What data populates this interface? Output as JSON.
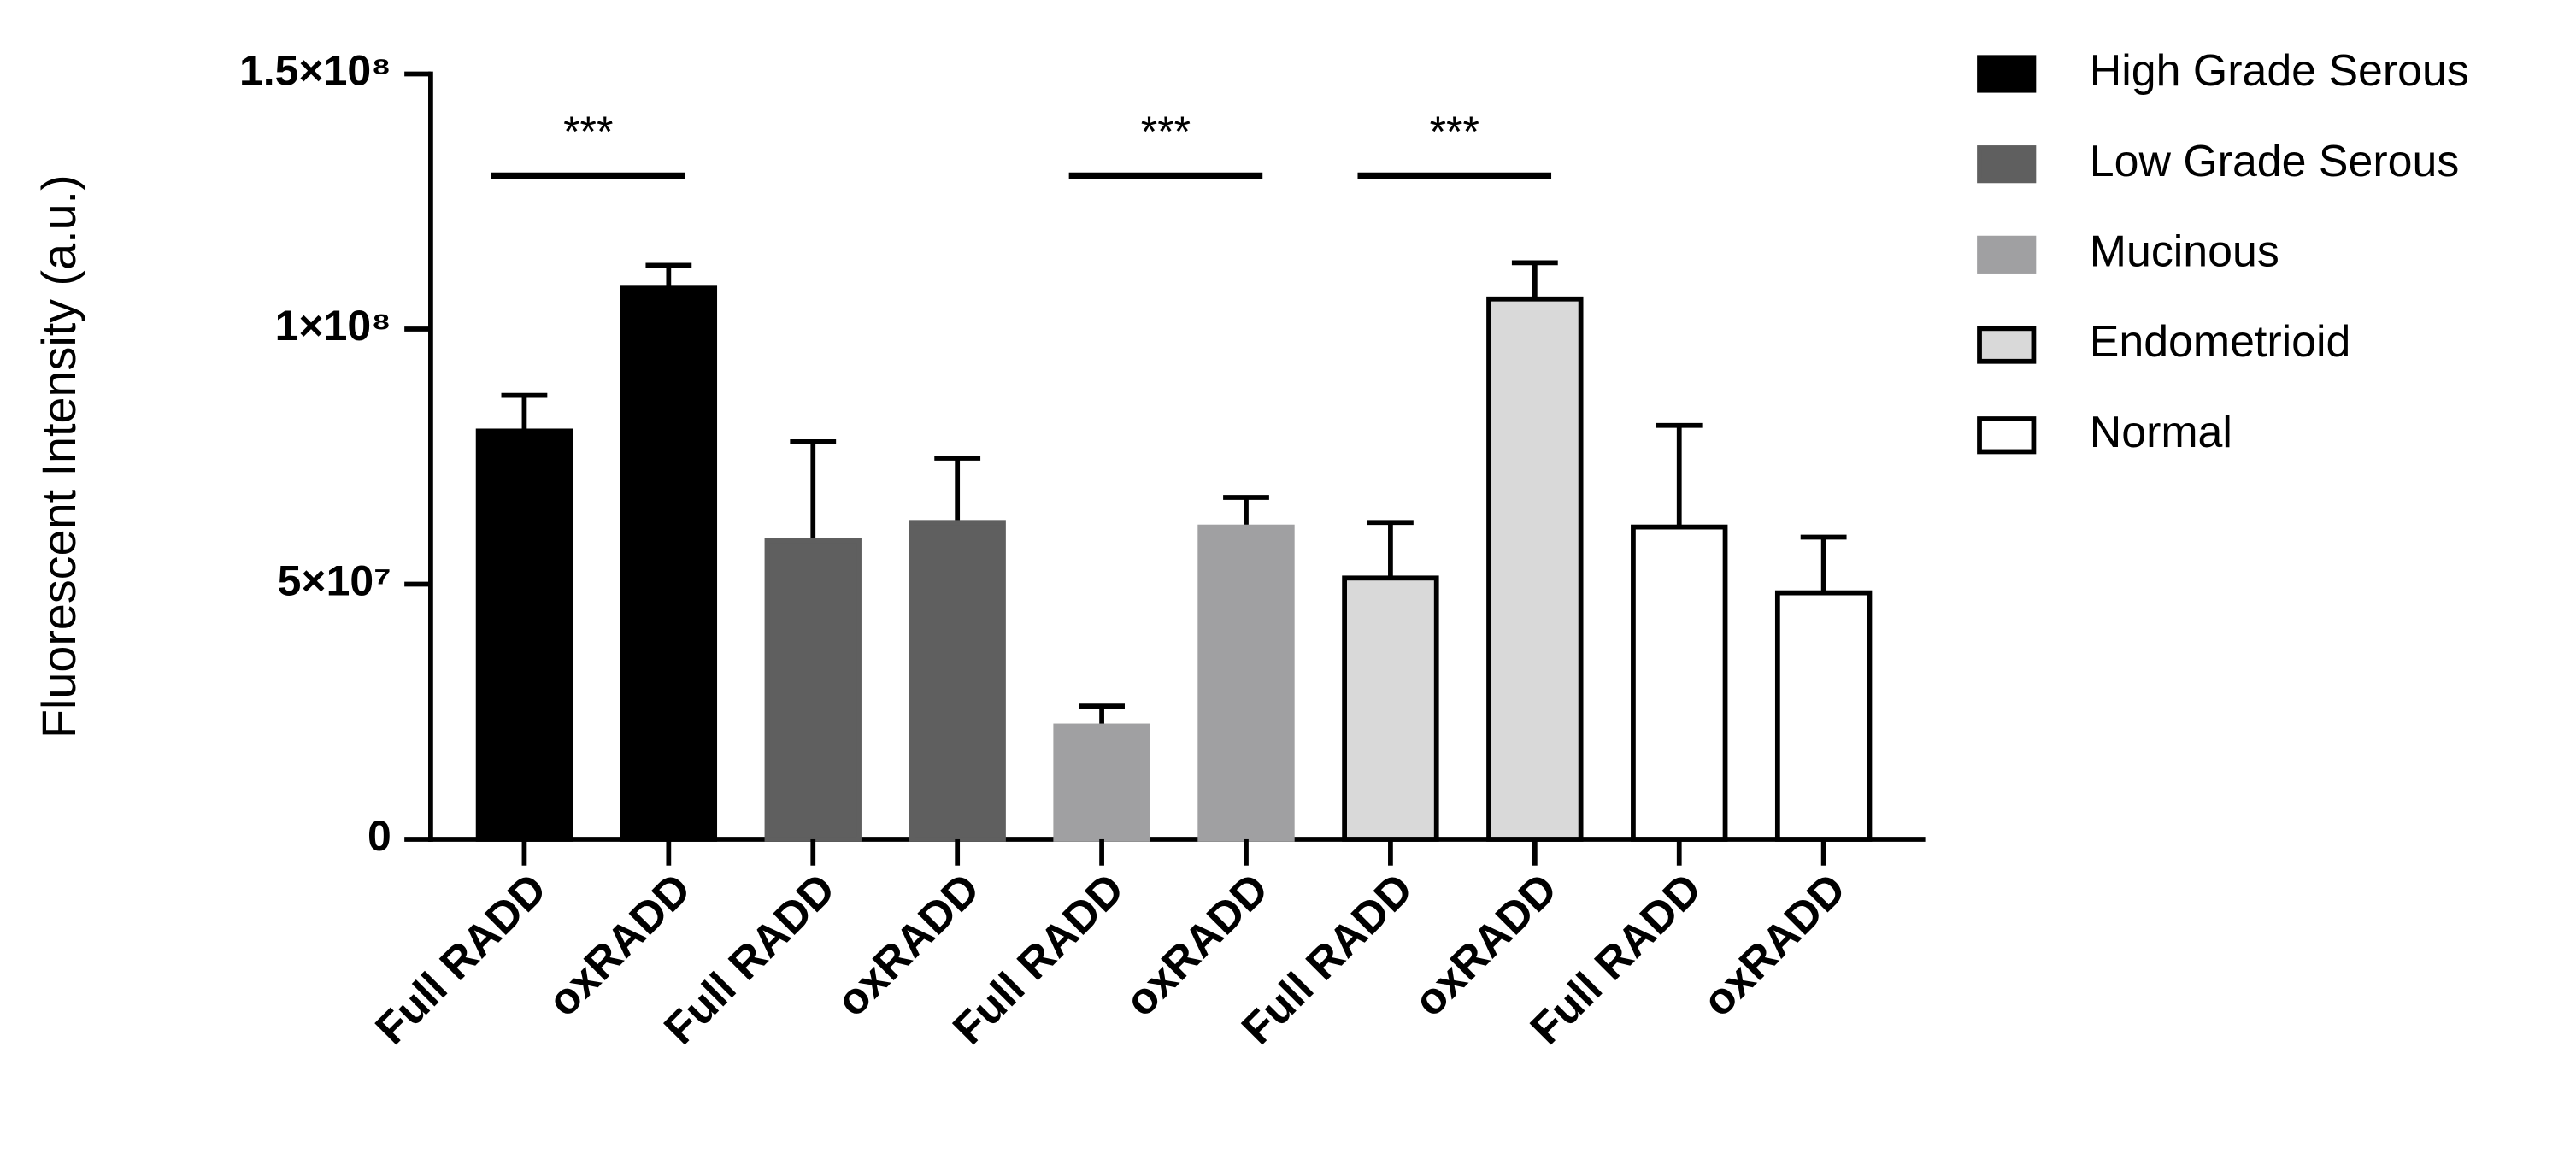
{
  "chart_data": {
    "type": "bar",
    "y_label": "Fluorescent Intensity (a.u.)",
    "categories": [
      "Full RADD",
      "oxRADD"
    ],
    "series": [
      {
        "name": "High Grade Serous",
        "color": "#000000",
        "values": [
          80000000,
          108000000
        ],
        "errors": [
          7000000,
          4500000
        ]
      },
      {
        "name": "Low Grade Serous",
        "color": "#5f5f5f",
        "values": [
          58600000,
          62100000
        ],
        "errors": [
          19300000,
          12600000
        ]
      },
      {
        "name": "Mucinous",
        "color": "#a0a0a2",
        "values": [
          22200000,
          61200000
        ],
        "errors": [
          3900000,
          5800000
        ]
      },
      {
        "name": "Endometrioid",
        "color": "#d9d9d9",
        "values": [
          51200000,
          105900000
        ],
        "errors": [
          10900000,
          7100000
        ]
      },
      {
        "name": "Normal",
        "color": "#ffffff",
        "values": [
          61200000,
          48300000
        ],
        "errors": [
          19900000,
          10900000
        ]
      }
    ],
    "ylim": [
      0,
      150000000
    ],
    "yticks": [
      0,
      {
        "value": 50000000,
        "label": "5×10⁷"
      },
      {
        "value": 100000000,
        "label": "1×10⁸"
      },
      {
        "value": 150000000,
        "label": "1.5×10⁸"
      }
    ],
    "annotations": [
      {
        "text": "***",
        "series": 0
      },
      {
        "text": "***",
        "series": 2
      },
      {
        "text": "***",
        "series": 3
      }
    ],
    "legend": "right"
  }
}
